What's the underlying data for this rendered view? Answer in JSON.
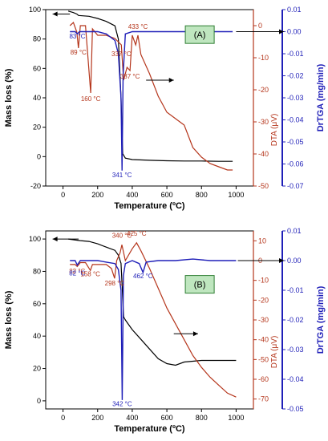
{
  "colors": {
    "mass": "#000000",
    "dta": "#b5361c",
    "drtga": "#1f1fb8",
    "panel_label_bg": "#bfe6bf",
    "panel_label_border": "#2e7d32"
  },
  "chart_data": [
    {
      "type": "line",
      "panel_label": "(A)",
      "xlabel": "Temperature (ºC)",
      "ylabel_left": "Mass loss (%)",
      "ylabel_right1": "DTA (μV)",
      "ylabel_right2": "DrTGA (mg/min)",
      "xlim": [
        -100,
        1100
      ],
      "xticks": [
        0,
        200,
        400,
        600,
        800,
        1000
      ],
      "ylim_left": [
        -20,
        100
      ],
      "yticks_left": [
        -20,
        0,
        20,
        40,
        60,
        80,
        100
      ],
      "ylim_right1": [
        -50,
        5
      ],
      "yticks_right1": [
        0,
        -10,
        -20,
        -30,
        -40,
        -50
      ],
      "ylim_right2": [
        -0.07,
        0.01
      ],
      "yticks_right2": [
        0.01,
        0.0,
        -0.01,
        -0.02,
        -0.03,
        -0.04,
        -0.05,
        -0.06,
        -0.07
      ],
      "series": [
        {
          "axis": "left",
          "color": "mass",
          "x": [
            30,
            60,
            80,
            90,
            150,
            200,
            250,
            300,
            320,
            335,
            345,
            360,
            400,
            500,
            600,
            700,
            800,
            900,
            980
          ],
          "y": [
            99,
            98,
            97,
            96,
            95.5,
            94,
            92,
            89,
            80,
            40,
            2,
            -1,
            -2,
            -2.5,
            -2.8,
            -3,
            -3,
            -3.2,
            -3.2
          ]
        },
        {
          "axis": "right1",
          "color": "dta",
          "x": [
            40,
            60,
            80,
            89,
            100,
            130,
            160,
            170,
            200,
            250,
            300,
            337,
            350,
            370,
            387,
            400,
            420,
            433,
            450,
            500,
            550,
            600,
            650,
            700,
            750,
            800,
            850,
            900,
            950,
            980
          ],
          "y": [
            0,
            1,
            -2,
            -7,
            0,
            0,
            -21,
            -1,
            -3,
            -3,
            -4,
            -6,
            -17,
            -13,
            -14,
            -3,
            -6,
            -3,
            -9,
            -15,
            -22,
            -27,
            -29,
            -31,
            -38,
            -41,
            -43,
            -44,
            -45,
            -45
          ]
        },
        {
          "axis": "right2",
          "color": "drtga",
          "x": [
            40,
            70,
            83,
            95,
            150,
            200,
            250,
            300,
            320,
            335,
            341,
            347,
            360,
            400,
            500,
            600,
            700,
            800,
            900,
            980
          ],
          "y": [
            0,
            0,
            -0.001,
            0,
            0,
            0,
            -0.001,
            -0.004,
            -0.01,
            -0.03,
            -0.063,
            -0.02,
            -0.001,
            0,
            0,
            0,
            0,
            0,
            0,
            0
          ]
        }
      ],
      "annotations": [
        {
          "text": "83 °C",
          "x": 83,
          "y": -0.003,
          "axis": "right2",
          "color": "drtga"
        },
        {
          "text": "89 °C",
          "x": 89,
          "y": -9,
          "axis": "right1",
          "color": "dta"
        },
        {
          "text": "160 °C",
          "x": 160,
          "y": -23.5,
          "axis": "right1",
          "color": "dta"
        },
        {
          "text": "337 °C",
          "x": 337,
          "y": -9.5,
          "axis": "right1",
          "color": "dta"
        },
        {
          "text": "387 °C",
          "x": 387,
          "y": -16.5,
          "axis": "right1",
          "color": "dta"
        },
        {
          "text": "433 °C",
          "x": 433,
          "y": -1,
          "axis": "right1",
          "color": "dta"
        },
        {
          "text": "341 °C",
          "x": 341,
          "y": -0.066,
          "axis": "right2",
          "color": "drtga"
        }
      ]
    },
    {
      "type": "line",
      "panel_label": "(B)",
      "xlabel": "Temperature (ºC)",
      "ylabel_left": "Mass loss (%)",
      "ylabel_right1": "DTA (μV)",
      "ylabel_right2": "DrTGA (mg/min)",
      "xlim": [
        -100,
        1100
      ],
      "xticks": [
        0,
        200,
        400,
        600,
        800,
        1000
      ],
      "ylim_left": [
        -5,
        105
      ],
      "yticks_left": [
        0,
        20,
        40,
        60,
        80,
        100
      ],
      "ylim_right1": [
        -75,
        15
      ],
      "yticks_right1": [
        10,
        0,
        -10,
        -20,
        -30,
        -40,
        -50,
        -60,
        -70
      ],
      "ylim_right2": [
        -0.05,
        0.01
      ],
      "yticks_right2": [
        0.01,
        0.0,
        -0.01,
        -0.02,
        -0.03,
        -0.04,
        -0.05
      ],
      "series": [
        {
          "axis": "left",
          "color": "mass",
          "x": [
            30,
            100,
            150,
            200,
            250,
            300,
            320,
            335,
            342,
            350,
            360,
            380,
            400,
            450,
            500,
            550,
            600,
            650,
            700,
            800,
            900,
            1000
          ],
          "y": [
            100,
            99,
            98.5,
            97,
            95,
            93,
            90,
            85,
            70,
            52,
            50,
            47,
            44,
            38,
            32,
            26,
            23,
            22,
            24,
            25,
            25,
            25
          ]
        },
        {
          "axis": "right1",
          "color": "dta",
          "x": [
            40,
            70,
            82,
            100,
            130,
            158,
            170,
            200,
            250,
            280,
            298,
            310,
            330,
            340,
            360,
            400,
            425,
            450,
            500,
            550,
            600,
            650,
            700,
            750,
            800,
            850,
            900,
            950,
            1000
          ],
          "y": [
            -2,
            -2,
            -3,
            -1,
            -1,
            -5,
            -2,
            -2,
            -2,
            -4,
            -9,
            0,
            4,
            8,
            0,
            6,
            9,
            5,
            -4,
            -14,
            -24,
            -32,
            -40,
            -48,
            -54,
            -59,
            -63,
            -67,
            -69
          ]
        },
        {
          "axis": "right2",
          "color": "drtga",
          "x": [
            40,
            70,
            82,
            100,
            150,
            200,
            250,
            300,
            320,
            335,
            342,
            349,
            360,
            400,
            440,
            462,
            480,
            550,
            650,
            750,
            850,
            1000
          ],
          "y": [
            0,
            0,
            -0.0015,
            0,
            0,
            0,
            -0.0005,
            -0.001,
            -0.003,
            -0.01,
            -0.047,
            -0.005,
            -0.001,
            0,
            -0.001,
            -0.004,
            -0.0005,
            0,
            0,
            0.0005,
            0,
            0
          ]
        }
      ],
      "annotations": [
        {
          "text": "82 °C",
          "x": 82,
          "y": -6.5,
          "axis": "right1",
          "color": "dta"
        },
        {
          "text": "82 °C",
          "x": 82,
          "y": -0.005,
          "axis": "right2",
          "color": "drtga"
        },
        {
          "text": "158 °C",
          "x": 158,
          "y": -8,
          "axis": "right1",
          "color": "dta"
        },
        {
          "text": "298 °C",
          "x": 298,
          "y": -12.5,
          "axis": "right1",
          "color": "dta"
        },
        {
          "text": "340 °C",
          "x": 340,
          "y": 11.5,
          "axis": "right1",
          "color": "dta"
        },
        {
          "text": "425 °C",
          "x": 425,
          "y": 12.5,
          "axis": "right1",
          "color": "dta"
        },
        {
          "text": "462 °C",
          "x": 462,
          "y": -0.006,
          "axis": "right2",
          "color": "drtga"
        },
        {
          "text": "342 °C",
          "x": 342,
          "y": -0.049,
          "axis": "right2",
          "color": "drtga"
        }
      ]
    }
  ]
}
